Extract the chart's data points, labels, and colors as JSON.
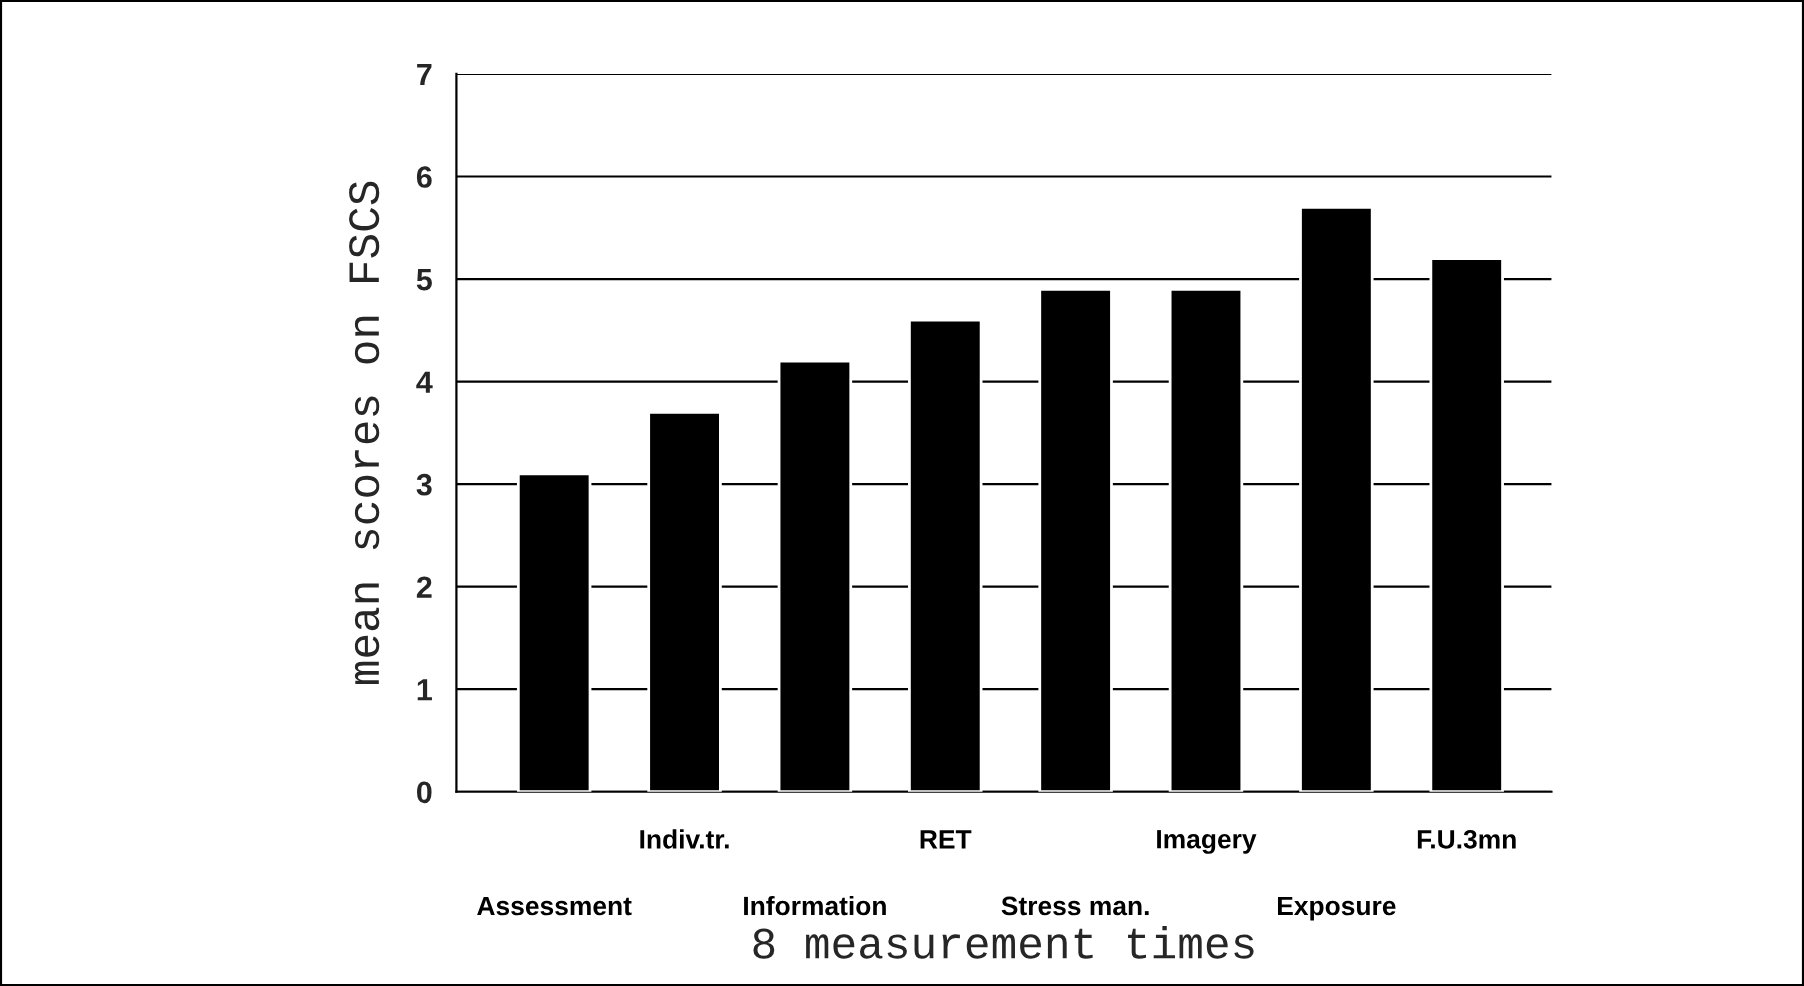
{
  "chart_data": {
    "type": "bar",
    "xlabel": "8 measurement times",
    "ylabel": "mean scores on FSCS",
    "categories": [
      "Assessment",
      "Indiv.tr.",
      "Information",
      "RET",
      "Stress man.",
      "Imagery",
      "Exposure",
      "F.U.3mn"
    ],
    "values": [
      3.1,
      3.7,
      4.2,
      4.6,
      4.9,
      4.9,
      5.7,
      5.2
    ],
    "color": "#000000",
    "ylim": [
      0,
      7
    ],
    "yticks": [
      0,
      1,
      2,
      3,
      4,
      5,
      6,
      7
    ],
    "grid": "y",
    "legend": false
  }
}
